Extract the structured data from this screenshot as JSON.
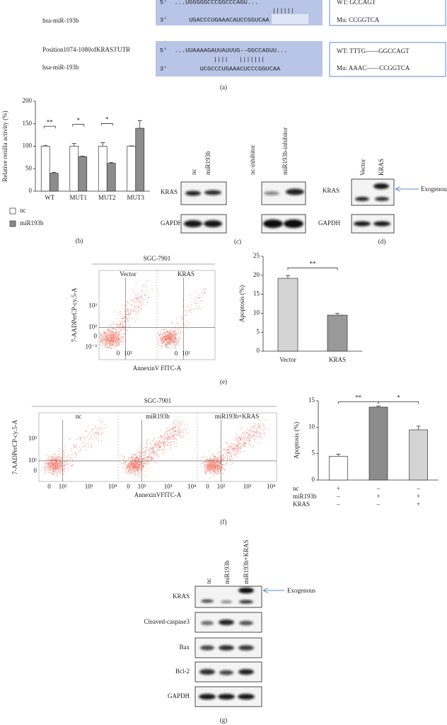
{
  "figure": {
    "panel_labels": [
      "(a)",
      "(b)",
      "(c)",
      "(d)",
      "(e)",
      "(f)",
      "(g)"
    ]
  },
  "panel_a": {
    "rows": [
      {
        "mirna": "hsa-miR-193b",
        "target": "5'  ...UGGGGGCCCGGCCCAGU...",
        "pairs": "||||||",
        "mirna_seq": "3'      UGACCCUGAAACAUCCGGUCAA",
        "wt": "WT: GCCAGT",
        "mu": "Mu: CCGGTCA"
      },
      {
        "position": "Position1074-1080ofKRAS3'UTR",
        "target": "5'  ...UUAAAAGAUUAUUUG--GGCCAGUU...",
        "pairs": "||||   |||||||",
        "mirna": "hsa-miR-193b",
        "mirna_seq": "3'         UCGCCCUGAAACUCCCGGUCAA",
        "wt": "WT: TTTG——GGCCAGT",
        "mu": "Mu: AAAC——CCGGTCA"
      }
    ]
  },
  "chart_data": [
    {
      "type": "bar",
      "y_label": "Relative renilla activity (%)",
      "categories": [
        "WT",
        "MUT1",
        "MUT2",
        "MUT3"
      ],
      "series": [
        {
          "name": "nc",
          "color": "#ffffff",
          "values": [
            100,
            100,
            100,
            100
          ],
          "errors": [
            2,
            6,
            8,
            1
          ]
        },
        {
          "name": "miR193b",
          "color": "#8c8c8c",
          "values": [
            40,
            77,
            62,
            140
          ],
          "errors": [
            2,
            1,
            2,
            17
          ]
        }
      ],
      "ylim": [
        0,
        200
      ],
      "yticks": [
        0,
        50,
        100,
        150,
        200
      ],
      "annotations": [
        {
          "text": "**",
          "category": 0
        },
        {
          "text": "*",
          "category": 1
        },
        {
          "text": "*",
          "category": 2
        }
      ]
    },
    {
      "type": "bar",
      "y_label": "Apoptosis (%)",
      "categories": [
        "Vector",
        "KRAS"
      ],
      "values": [
        19.2,
        9.5
      ],
      "errors": [
        0.7,
        0.5
      ],
      "colors": [
        "#d4d4d4",
        "#999999"
      ],
      "ylim": [
        0,
        25
      ],
      "yticks": [
        0,
        5,
        10,
        15,
        20,
        25
      ],
      "annotations": [
        {
          "text": "**",
          "from": 0,
          "to": 1
        }
      ]
    },
    {
      "type": "bar",
      "y_label": "Apoptosis (%)",
      "categories": [
        null,
        null,
        null
      ],
      "values": [
        4.5,
        13.8,
        9.5
      ],
      "errors": [
        0.4,
        0.2,
        0.7
      ],
      "colors": [
        "#ffffff",
        "#8c8c8c",
        "#d4d4d4"
      ],
      "ylim": [
        0,
        15
      ],
      "yticks": [
        0,
        5,
        10,
        15
      ],
      "annotations": [
        {
          "text": "**",
          "from": 0,
          "to": 1
        },
        {
          "text": "*",
          "from": 1,
          "to": 2
        }
      ],
      "conditions": [
        {
          "name": "nc",
          "values": [
            "+",
            "–",
            "–"
          ]
        },
        {
          "name": "miR193b",
          "values": [
            "–",
            "+",
            "+"
          ]
        },
        {
          "name": "KRAS",
          "values": [
            "–",
            "–",
            "+"
          ]
        }
      ]
    }
  ],
  "panel_c": {
    "lanes": [
      "nc",
      "miR193b",
      "nc-inhibitor",
      "miR193b-inhibitor"
    ],
    "rows": [
      "KRAS",
      "GAPDH"
    ]
  },
  "panel_d": {
    "lanes": [
      "Vector",
      "KRAS"
    ],
    "rows": [
      "KRAS",
      "GAPDH"
    ],
    "annotation": "Exogenous"
  },
  "panel_e_flow": {
    "title": "SGC-7901",
    "panels": [
      "Vector",
      "KRAS"
    ],
    "y_label": "7-AADPerCP-cy.5-A",
    "y_ticks": [
      "10³",
      "10²",
      "0",
      "10⁻²"
    ],
    "x_ticks": [
      "0",
      "10²"
    ],
    "x_label": "AnnexinV FITC-A"
  },
  "panel_f_flow": {
    "title": "SGC-7901",
    "panels": [
      "nc",
      "miR193b",
      "miR193b+KRAS"
    ],
    "y_label": "7-AADPerCP-cy.5-A",
    "y_ticks": [
      "10³",
      "10²",
      "0"
    ],
    "x_ticks": [
      "0",
      "10²",
      "10³",
      "10⁴"
    ],
    "x_label": "AnnexinVFITC-A"
  },
  "panel_g": {
    "lanes": [
      "nc",
      "miR193b",
      "miR193b+KRAS"
    ],
    "rows": [
      "KRAS",
      "Cleaved-caspase3",
      "Bax",
      "Bcl-2",
      "GAPDH"
    ],
    "annotation": "Exogenous"
  }
}
